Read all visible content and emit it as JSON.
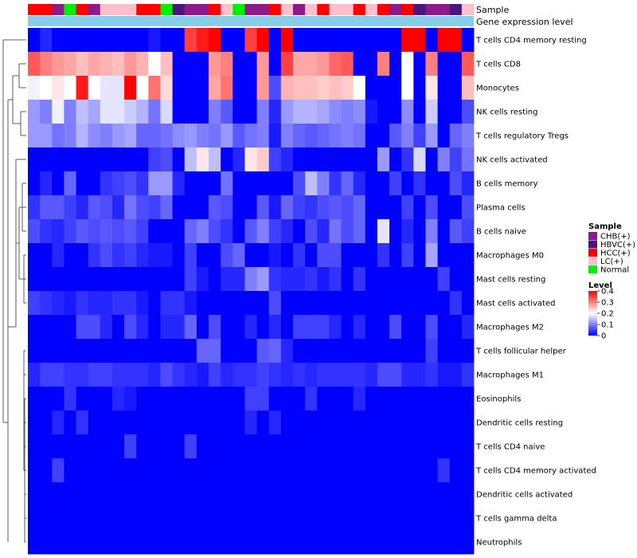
{
  "chart_data": {
    "type": "heatmap",
    "annotation_tracks": [
      "Sample",
      "Gene expression level"
    ],
    "rows": [
      "T cells CD4 memory resting",
      "T cells CD8",
      "Monocytes",
      "NK cells resting",
      "T cells regulatory  Tregs",
      "NK cells activated",
      "B cells memory",
      "Plasma cells",
      "B cells naive",
      "Macrophages M0",
      "Mast cells resting",
      "Mast cells activated",
      "Macrophages M2",
      "T cells follicular helper",
      "Macrophages M1",
      "Eosinophils",
      "Dendritic cells resting",
      "T cells CD4 naive",
      "T cells CD4 memory activated",
      "Dendritic cells activated",
      "T cells gamma delta",
      "Neutrophils"
    ],
    "sample_groups": [
      "HCC(+)",
      "HCC(+)",
      "CHB(+)",
      "Normal",
      "HCC(+)",
      "CHB(+)",
      "LC(+)",
      "LC(+)",
      "LC(+)",
      "HCC(+)",
      "HCC(+)",
      "Normal",
      "HBVC(+)",
      "CHB(+)",
      "CHB(+)",
      "HCC(+)",
      "LC(+)",
      "Normal",
      "CHB(+)",
      "CHB(+)",
      "HCC(+)",
      "LC(+)",
      "CHB(+)",
      "LC(+)",
      "HCC(+)",
      "LC(+)",
      "LC(+)",
      "HCC(+)",
      "LC(+)",
      "HCC(+)",
      "CHB(+)",
      "HCC(+)",
      "HBVC(+)",
      "CHB(+)",
      "CHB(+)",
      "HBVC(+)",
      "LC(+)"
    ],
    "values": [
      [
        0.0,
        0.03,
        0.0,
        0.0,
        0.0,
        0.0,
        0.0,
        0.0,
        0.0,
        0.0,
        0.02,
        0.0,
        0.0,
        0.35,
        0.38,
        0.4,
        0.0,
        0.0,
        0.35,
        0.4,
        0.0,
        0.42,
        0.0,
        0.0,
        0.0,
        0.0,
        0.0,
        0.0,
        0.0,
        0.0,
        0.0,
        0.43,
        0.43,
        0.0,
        0.43,
        0.43,
        0.0
      ],
      [
        0.33,
        0.3,
        0.28,
        0.27,
        0.25,
        0.27,
        0.26,
        0.25,
        0.28,
        0.26,
        0.2,
        0.25,
        0.0,
        0.0,
        0.0,
        0.28,
        0.3,
        0.0,
        0.0,
        0.28,
        0.0,
        0.35,
        0.27,
        0.27,
        0.28,
        0.32,
        0.33,
        0.0,
        0.0,
        0.3,
        0.0,
        0.2,
        0.0,
        0.3,
        0.0,
        0.0,
        0.33
      ],
      [
        0.19,
        0.2,
        0.22,
        0.2,
        0.38,
        0.2,
        0.18,
        0.18,
        0.4,
        0.2,
        0.31,
        0.23,
        0.0,
        0.0,
        0.0,
        0.27,
        0.31,
        0.0,
        0.0,
        0.28,
        0.06,
        0.26,
        0.25,
        0.25,
        0.24,
        0.25,
        0.24,
        0.2,
        0.0,
        0.0,
        0.0,
        0.2,
        0.0,
        0.22,
        0.0,
        0.0,
        0.25
      ],
      [
        0.12,
        0.1,
        0.19,
        0.1,
        0.15,
        0.13,
        0.18,
        0.18,
        0.16,
        0.14,
        0.09,
        0.17,
        0.0,
        0.0,
        0.0,
        0.1,
        0.07,
        0.0,
        0.0,
        0.1,
        0.03,
        0.12,
        0.14,
        0.14,
        0.13,
        0.11,
        0.1,
        0.11,
        0.02,
        0.0,
        0.0,
        0.11,
        0.0,
        0.16,
        0.0,
        0.0,
        0.06
      ],
      [
        0.12,
        0.12,
        0.09,
        0.1,
        0.14,
        0.11,
        0.1,
        0.12,
        0.13,
        0.08,
        0.08,
        0.09,
        0.11,
        0.12,
        0.1,
        0.09,
        0.12,
        0.07,
        0.09,
        0.1,
        0.02,
        0.1,
        0.08,
        0.07,
        0.08,
        0.09,
        0.1,
        0.09,
        0.0,
        0.0,
        0.07,
        0.1,
        0.05,
        0.12,
        0.0,
        0.08,
        0.1
      ],
      [
        0.0,
        0.0,
        0.0,
        0.0,
        0.0,
        0.0,
        0.0,
        0.0,
        0.0,
        0.0,
        0.05,
        0.06,
        0.0,
        0.15,
        0.22,
        0.15,
        0.0,
        0.03,
        0.22,
        0.24,
        0.05,
        0.03,
        0.0,
        0.0,
        0.0,
        0.0,
        0.0,
        0.0,
        0.0,
        0.12,
        0.0,
        0.04,
        0.17,
        0.0,
        0.1,
        0.05,
        0.09
      ],
      [
        0.0,
        0.03,
        0.0,
        0.08,
        0.0,
        0.0,
        0.04,
        0.05,
        0.06,
        0.04,
        0.12,
        0.12,
        0.03,
        0.0,
        0.0,
        0.0,
        0.09,
        0.0,
        0.0,
        0.0,
        0.0,
        0.0,
        0.06,
        0.15,
        0.1,
        0.04,
        0.08,
        0.03,
        0.0,
        0.0,
        0.05,
        0.0,
        0.04,
        0.0,
        0.0,
        0.06,
        0.03
      ],
      [
        0.04,
        0.07,
        0.07,
        0.05,
        0.03,
        0.07,
        0.06,
        0.03,
        0.09,
        0.06,
        0.05,
        0.08,
        0.0,
        0.0,
        0.0,
        0.07,
        0.06,
        0.0,
        0.0,
        0.07,
        0.02,
        0.08,
        0.05,
        0.04,
        0.06,
        0.07,
        0.06,
        0.08,
        0.0,
        0.0,
        0.0,
        0.05,
        0.0,
        0.06,
        0.0,
        0.0,
        0.06
      ],
      [
        0.06,
        0.04,
        0.03,
        0.05,
        0.07,
        0.06,
        0.07,
        0.06,
        0.07,
        0.05,
        0.0,
        0.0,
        0.0,
        0.08,
        0.1,
        0.06,
        0.04,
        0.0,
        0.07,
        0.1,
        0.05,
        0.03,
        0.0,
        0.06,
        0.03,
        0.09,
        0.06,
        0.08,
        0.0,
        0.18,
        0.0,
        0.03,
        0.0,
        0.1,
        0.0,
        0.07,
        0.05
      ],
      [
        0.0,
        0.0,
        0.03,
        0.0,
        0.0,
        0.04,
        0.06,
        0.04,
        0.05,
        0.03,
        0.02,
        0.02,
        0.0,
        0.05,
        0.0,
        0.0,
        0.06,
        0.08,
        0.0,
        0.0,
        0.02,
        0.0,
        0.04,
        0.0,
        0.06,
        0.06,
        0.0,
        0.0,
        0.0,
        0.04,
        0.0,
        0.05,
        0.0,
        0.13,
        0.0,
        0.0,
        0.0
      ],
      [
        0.0,
        0.0,
        0.0,
        0.0,
        0.0,
        0.0,
        0.0,
        0.0,
        0.0,
        0.0,
        0.0,
        0.0,
        0.0,
        0.05,
        0.02,
        0.0,
        0.03,
        0.03,
        0.1,
        0.12,
        0.04,
        0.03,
        0.03,
        0.04,
        0.02,
        0.04,
        0.0,
        0.04,
        0.0,
        0.0,
        0.0,
        0.0,
        0.0,
        0.0,
        0.05,
        0.0,
        0.0
      ],
      [
        0.05,
        0.04,
        0.03,
        0.02,
        0.04,
        0.03,
        0.03,
        0.04,
        0.04,
        0.02,
        0.0,
        0.04,
        0.04,
        0.02,
        0.0,
        0.0,
        0.0,
        0.0,
        0.0,
        0.0,
        0.06,
        0.0,
        0.0,
        0.0,
        0.0,
        0.0,
        0.0,
        0.0,
        0.0,
        0.0,
        0.0,
        0.0,
        0.0,
        0.0,
        0.0,
        0.04,
        0.0
      ],
      [
        0.0,
        0.0,
        0.0,
        0.0,
        0.06,
        0.06,
        0.03,
        0.0,
        0.06,
        0.03,
        0.0,
        0.03,
        0.03,
        0.08,
        0.0,
        0.06,
        0.0,
        0.0,
        0.03,
        0.0,
        0.03,
        0.0,
        0.05,
        0.05,
        0.05,
        0.03,
        0.0,
        0.03,
        0.0,
        0.0,
        0.06,
        0.0,
        0.0,
        0.06,
        0.0,
        0.0,
        0.03
      ],
      [
        0.0,
        0.0,
        0.0,
        0.0,
        0.0,
        0.0,
        0.0,
        0.0,
        0.0,
        0.0,
        0.0,
        0.0,
        0.0,
        0.0,
        0.08,
        0.08,
        0.0,
        0.0,
        0.0,
        0.07,
        0.08,
        0.03,
        0.0,
        0.0,
        0.0,
        0.0,
        0.0,
        0.0,
        0.0,
        0.0,
        0.0,
        0.0,
        0.0,
        0.05,
        0.0,
        0.0,
        0.0
      ],
      [
        0.03,
        0.05,
        0.05,
        0.04,
        0.04,
        0.05,
        0.05,
        0.04,
        0.04,
        0.04,
        0.03,
        0.06,
        0.04,
        0.03,
        0.02,
        0.05,
        0.03,
        0.04,
        0.04,
        0.05,
        0.04,
        0.03,
        0.04,
        0.03,
        0.04,
        0.04,
        0.04,
        0.04,
        0.03,
        0.06,
        0.06,
        0.03,
        0.03,
        0.04,
        0.02,
        0.02,
        0.04
      ],
      [
        0.0,
        0.0,
        0.0,
        0.04,
        0.0,
        0.0,
        0.0,
        0.03,
        0.02,
        0.0,
        0.0,
        0.0,
        0.0,
        0.0,
        0.0,
        0.0,
        0.0,
        0.0,
        0.05,
        0.05,
        0.0,
        0.0,
        0.0,
        0.04,
        0.0,
        0.0,
        0.0,
        0.03,
        0.0,
        0.0,
        0.0,
        0.0,
        0.0,
        0.0,
        0.0,
        0.0,
        0.0
      ],
      [
        0.0,
        0.0,
        0.03,
        0.0,
        0.04,
        0.0,
        0.0,
        0.0,
        0.0,
        0.0,
        0.0,
        0.0,
        0.0,
        0.0,
        0.0,
        0.0,
        0.0,
        0.0,
        0.03,
        0.0,
        0.03,
        0.0,
        0.0,
        0.0,
        0.0,
        0.0,
        0.0,
        0.0,
        0.0,
        0.0,
        0.0,
        0.0,
        0.0,
        0.0,
        0.0,
        0.0,
        0.0
      ],
      [
        0.0,
        0.0,
        0.0,
        0.0,
        0.0,
        0.0,
        0.0,
        0.0,
        0.05,
        0.0,
        0.0,
        0.0,
        0.0,
        0.05,
        0.0,
        0.0,
        0.0,
        0.0,
        0.0,
        0.0,
        0.0,
        0.0,
        0.0,
        0.0,
        0.0,
        0.0,
        0.0,
        0.0,
        0.0,
        0.0,
        0.0,
        0.0,
        0.0,
        0.0,
        0.0,
        0.0,
        0.0
      ],
      [
        0.0,
        0.0,
        0.05,
        0.0,
        0.0,
        0.0,
        0.0,
        0.0,
        0.0,
        0.0,
        0.0,
        0.0,
        0.0,
        0.0,
        0.0,
        0.0,
        0.0,
        0.0,
        0.0,
        0.0,
        0.0,
        0.0,
        0.0,
        0.0,
        0.0,
        0.0,
        0.0,
        0.0,
        0.0,
        0.0,
        0.0,
        0.0,
        0.0,
        0.0,
        0.04,
        0.0,
        0.0
      ],
      [
        0.0,
        0.0,
        0.0,
        0.0,
        0.0,
        0.0,
        0.0,
        0.0,
        0.0,
        0.0,
        0.0,
        0.0,
        0.0,
        0.0,
        0.0,
        0.0,
        0.0,
        0.0,
        0.0,
        0.0,
        0.0,
        0.0,
        0.0,
        0.0,
        0.0,
        0.0,
        0.0,
        0.0,
        0.0,
        0.0,
        0.0,
        0.0,
        0.0,
        0.0,
        0.0,
        0.0,
        0.0
      ],
      [
        0.0,
        0.0,
        0.0,
        0.0,
        0.0,
        0.0,
        0.0,
        0.0,
        0.0,
        0.0,
        0.0,
        0.0,
        0.0,
        0.0,
        0.0,
        0.0,
        0.0,
        0.0,
        0.0,
        0.0,
        0.0,
        0.0,
        0.0,
        0.0,
        0.0,
        0.0,
        0.0,
        0.0,
        0.0,
        0.0,
        0.0,
        0.0,
        0.0,
        0.0,
        0.0,
        0.0,
        0.0
      ],
      [
        0.0,
        0.0,
        0.0,
        0.0,
        0.0,
        0.0,
        0.0,
        0.0,
        0.0,
        0.0,
        0.0,
        0.0,
        0.0,
        0.0,
        0.0,
        0.0,
        0.0,
        0.0,
        0.0,
        0.0,
        0.0,
        0.0,
        0.0,
        0.0,
        0.0,
        0.0,
        0.0,
        0.0,
        0.0,
        0.0,
        0.0,
        0.0,
        0.0,
        0.0,
        0.0,
        0.0,
        0.0
      ]
    ],
    "legend_sample": {
      "title": "Sample",
      "entries": [
        {
          "label": "CHB(+)",
          "color": "#8b1a8b"
        },
        {
          "label": "HBVC(+)",
          "color": "#4b1580"
        },
        {
          "label": "HCC(+)",
          "color": "#ff0000"
        },
        {
          "label": "LC(+)",
          "color": "#ffc0cb"
        },
        {
          "label": "Normal",
          "color": "#00ee00"
        }
      ]
    },
    "legend_level": {
      "title": "Level",
      "ticks": [
        "0.4",
        "0.3",
        "0.2",
        "0.1",
        "0"
      ],
      "range": [
        0,
        0.4
      ]
    },
    "colorscale": {
      "low": "#0000ff",
      "mid": "#ffffff",
      "high": "#ff0000",
      "mid_value": 0.2
    },
    "gene_expression_color": "#87ceeb",
    "grid": false,
    "legend_position": "right"
  }
}
